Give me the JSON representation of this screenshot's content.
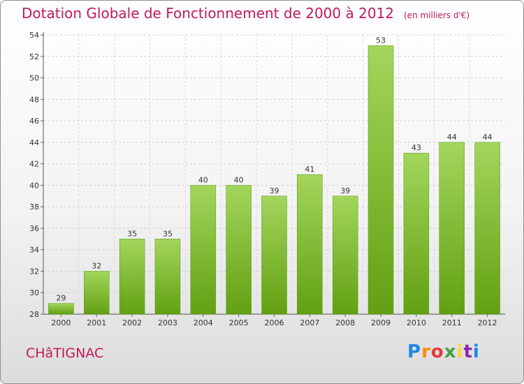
{
  "header": {
    "title": "Dotation Globale de Fonctionnement de 2000 à 2012",
    "unit": "(en milliers d'€)"
  },
  "footer": {
    "commune": "CHâTIGNAC",
    "brand": "Proxiti"
  },
  "colors": {
    "bar_light": "#a3d65c",
    "bar_dark": "#62a012",
    "title": "#c2185b"
  },
  "chart_data": {
    "type": "bar",
    "title": "Dotation Globale de Fonctionnement de 2000 à 2012",
    "subtitle": "(en milliers d'€)",
    "categories": [
      "2000",
      "2001",
      "2002",
      "2003",
      "2004",
      "2005",
      "2006",
      "2007",
      "2008",
      "2009",
      "2010",
      "2011",
      "2012"
    ],
    "values": [
      29,
      32,
      35,
      35,
      40,
      40,
      39,
      41,
      39,
      53,
      43,
      44,
      44
    ],
    "ylim": [
      28,
      54
    ],
    "yticks": [
      28,
      30,
      32,
      34,
      36,
      38,
      40,
      42,
      44,
      46,
      48,
      50,
      52,
      54
    ],
    "grid": true
  }
}
